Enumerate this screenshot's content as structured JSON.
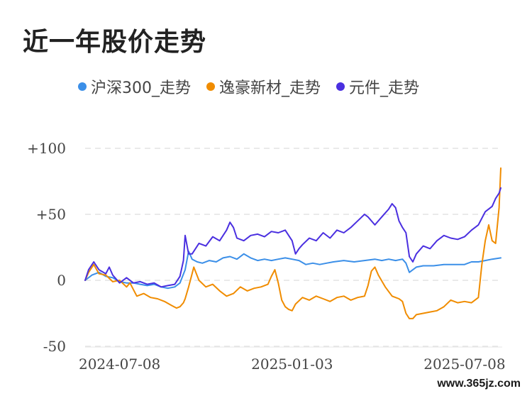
{
  "colors": {
    "hs300": "#3b8fe8",
    "yihao": "#f08c00",
    "yuanjian": "#4a2fe0",
    "grid": "#e3e3e3"
  },
  "watermark": "www.365jz.com",
  "chart_data": {
    "type": "line",
    "title": "近一年股价走势",
    "xlabel": "",
    "ylabel": "",
    "ylim": [
      -50,
      100
    ],
    "y_ticks": [
      -50,
      0,
      50,
      100
    ],
    "y_tick_labels": [
      "-50",
      "0",
      "+50",
      "+100"
    ],
    "x_tick_labels": [
      "2024-07-08",
      "2025-01-03",
      "2025-07-08"
    ],
    "x_tick_index": [
      20,
      120,
      220
    ],
    "grid": true,
    "legend_position": "top",
    "x_count": 242,
    "series": [
      {
        "name": "沪深300_走势",
        "color_key": "hs300",
        "points": [
          [
            0,
            0
          ],
          [
            4,
            4
          ],
          [
            8,
            6
          ],
          [
            12,
            3
          ],
          [
            16,
            2
          ],
          [
            20,
            -1
          ],
          [
            24,
            -2
          ],
          [
            28,
            -2
          ],
          [
            32,
            -3
          ],
          [
            36,
            -4
          ],
          [
            40,
            -3
          ],
          [
            44,
            -5
          ],
          [
            48,
            -6
          ],
          [
            52,
            -5
          ],
          [
            55,
            -2
          ],
          [
            58,
            8
          ],
          [
            60,
            22
          ],
          [
            62,
            16
          ],
          [
            65,
            14
          ],
          [
            68,
            13
          ],
          [
            72,
            15
          ],
          [
            76,
            14
          ],
          [
            80,
            17
          ],
          [
            84,
            18
          ],
          [
            88,
            16
          ],
          [
            92,
            20
          ],
          [
            96,
            17
          ],
          [
            100,
            15
          ],
          [
            104,
            16
          ],
          [
            108,
            15
          ],
          [
            112,
            16
          ],
          [
            116,
            17
          ],
          [
            120,
            16
          ],
          [
            124,
            15
          ],
          [
            128,
            12
          ],
          [
            132,
            13
          ],
          [
            136,
            12
          ],
          [
            140,
            13
          ],
          [
            144,
            14
          ],
          [
            150,
            15
          ],
          [
            156,
            14
          ],
          [
            162,
            15
          ],
          [
            168,
            16
          ],
          [
            172,
            15
          ],
          [
            176,
            16
          ],
          [
            180,
            15
          ],
          [
            184,
            16
          ],
          [
            186,
            13
          ],
          [
            188,
            6
          ],
          [
            192,
            10
          ],
          [
            196,
            11
          ],
          [
            202,
            11
          ],
          [
            208,
            12
          ],
          [
            214,
            12
          ],
          [
            220,
            12
          ],
          [
            224,
            14
          ],
          [
            228,
            14
          ],
          [
            232,
            15
          ],
          [
            236,
            16
          ],
          [
            241,
            17
          ]
        ]
      },
      {
        "name": "逸豪新材_走势",
        "color_key": "yihao",
        "points": [
          [
            0,
            0
          ],
          [
            2,
            6
          ],
          [
            5,
            12
          ],
          [
            8,
            5
          ],
          [
            12,
            4
          ],
          [
            16,
            -1
          ],
          [
            20,
            0
          ],
          [
            24,
            -5
          ],
          [
            26,
            -2
          ],
          [
            30,
            -12
          ],
          [
            34,
            -10
          ],
          [
            38,
            -13
          ],
          [
            42,
            -14
          ],
          [
            46,
            -16
          ],
          [
            50,
            -19
          ],
          [
            53,
            -21
          ],
          [
            55,
            -20
          ],
          [
            57,
            -17
          ],
          [
            58,
            -14
          ],
          [
            60,
            -5
          ],
          [
            62,
            5
          ],
          [
            63,
            10
          ],
          [
            66,
            0
          ],
          [
            70,
            -5
          ],
          [
            74,
            -3
          ],
          [
            78,
            -8
          ],
          [
            82,
            -12
          ],
          [
            86,
            -10
          ],
          [
            90,
            -5
          ],
          [
            94,
            -8
          ],
          [
            98,
            -6
          ],
          [
            102,
            -5
          ],
          [
            106,
            -3
          ],
          [
            108,
            3
          ],
          [
            110,
            8
          ],
          [
            112,
            -2
          ],
          [
            114,
            -15
          ],
          [
            116,
            -20
          ],
          [
            118,
            -22
          ],
          [
            120,
            -23
          ],
          [
            122,
            -18
          ],
          [
            126,
            -13
          ],
          [
            130,
            -15
          ],
          [
            134,
            -12
          ],
          [
            138,
            -14
          ],
          [
            142,
            -16
          ],
          [
            146,
            -13
          ],
          [
            150,
            -12
          ],
          [
            154,
            -15
          ],
          [
            158,
            -13
          ],
          [
            162,
            -12
          ],
          [
            164,
            -4
          ],
          [
            166,
            7
          ],
          [
            168,
            10
          ],
          [
            170,
            4
          ],
          [
            174,
            -5
          ],
          [
            178,
            -12
          ],
          [
            180,
            -13
          ],
          [
            182,
            -14
          ],
          [
            184,
            -16
          ],
          [
            186,
            -25
          ],
          [
            188,
            -29
          ],
          [
            190,
            -29
          ],
          [
            192,
            -26
          ],
          [
            196,
            -25
          ],
          [
            200,
            -24
          ],
          [
            204,
            -23
          ],
          [
            208,
            -20
          ],
          [
            212,
            -15
          ],
          [
            216,
            -17
          ],
          [
            220,
            -16
          ],
          [
            224,
            -17
          ],
          [
            226,
            -15
          ],
          [
            228,
            -13
          ],
          [
            230,
            12
          ],
          [
            232,
            30
          ],
          [
            234,
            42
          ],
          [
            236,
            30
          ],
          [
            238,
            28
          ],
          [
            240,
            55
          ],
          [
            241,
            85
          ]
        ]
      },
      {
        "name": "元件_走势",
        "color_key": "yuanjian",
        "points": [
          [
            0,
            0
          ],
          [
            2,
            8
          ],
          [
            5,
            14
          ],
          [
            8,
            8
          ],
          [
            12,
            5
          ],
          [
            14,
            10
          ],
          [
            16,
            4
          ],
          [
            20,
            -2
          ],
          [
            24,
            2
          ],
          [
            28,
            -2
          ],
          [
            32,
            -1
          ],
          [
            36,
            -3
          ],
          [
            40,
            -2
          ],
          [
            44,
            -5
          ],
          [
            48,
            -4
          ],
          [
            52,
            -3
          ],
          [
            55,
            3
          ],
          [
            57,
            15
          ],
          [
            58,
            34
          ],
          [
            60,
            20
          ],
          [
            62,
            20
          ],
          [
            66,
            28
          ],
          [
            70,
            26
          ],
          [
            74,
            33
          ],
          [
            78,
            30
          ],
          [
            82,
            38
          ],
          [
            84,
            44
          ],
          [
            86,
            40
          ],
          [
            88,
            32
          ],
          [
            92,
            30
          ],
          [
            96,
            34
          ],
          [
            100,
            35
          ],
          [
            104,
            33
          ],
          [
            108,
            37
          ],
          [
            112,
            36
          ],
          [
            116,
            38
          ],
          [
            120,
            30
          ],
          [
            122,
            20
          ],
          [
            124,
            24
          ],
          [
            126,
            27
          ],
          [
            130,
            32
          ],
          [
            134,
            30
          ],
          [
            138,
            36
          ],
          [
            142,
            32
          ],
          [
            146,
            38
          ],
          [
            150,
            36
          ],
          [
            154,
            40
          ],
          [
            158,
            45
          ],
          [
            162,
            50
          ],
          [
            164,
            48
          ],
          [
            168,
            42
          ],
          [
            172,
            48
          ],
          [
            176,
            54
          ],
          [
            178,
            58
          ],
          [
            180,
            55
          ],
          [
            182,
            45
          ],
          [
            184,
            40
          ],
          [
            186,
            36
          ],
          [
            188,
            18
          ],
          [
            190,
            14
          ],
          [
            192,
            20
          ],
          [
            196,
            26
          ],
          [
            200,
            24
          ],
          [
            204,
            30
          ],
          [
            208,
            34
          ],
          [
            212,
            32
          ],
          [
            216,
            31
          ],
          [
            220,
            33
          ],
          [
            224,
            38
          ],
          [
            228,
            42
          ],
          [
            232,
            52
          ],
          [
            236,
            56
          ],
          [
            238,
            62
          ],
          [
            240,
            66
          ],
          [
            241,
            70
          ]
        ]
      }
    ]
  }
}
